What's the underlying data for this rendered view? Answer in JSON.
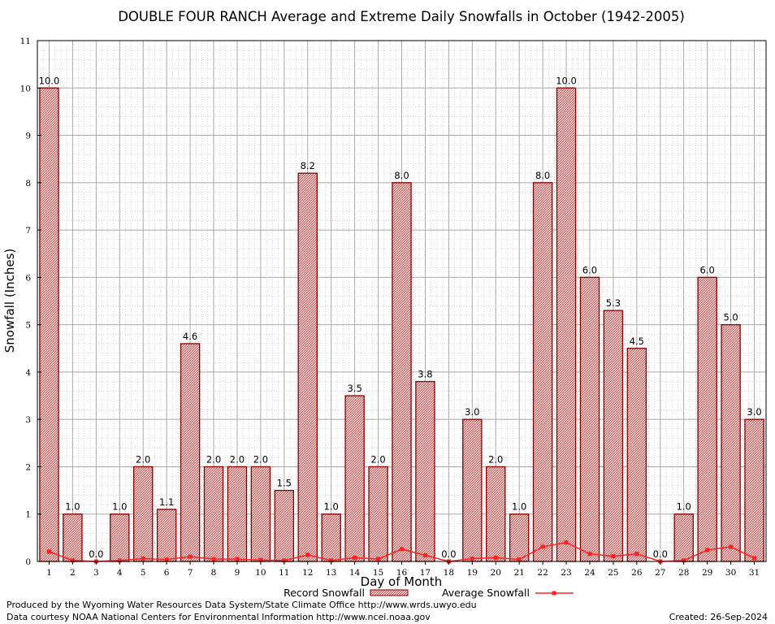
{
  "chart_data": {
    "type": "bar",
    "title": "DOUBLE FOUR RANCH Average and Extreme Daily Snowfalls in October (1942-2005)",
    "xlabel": "Day of Month",
    "ylabel": "Snowfall (Inches)",
    "ylim": [
      0,
      11
    ],
    "yticks": [
      "0",
      "1",
      "2",
      "3",
      "4",
      "5",
      "6",
      "7",
      "8",
      "9",
      "10",
      "11"
    ],
    "categories": [
      "1",
      "2",
      "3",
      "4",
      "5",
      "6",
      "7",
      "8",
      "9",
      "10",
      "11",
      "12",
      "13",
      "14",
      "15",
      "16",
      "17",
      "18",
      "19",
      "20",
      "21",
      "22",
      "23",
      "24",
      "25",
      "26",
      "27",
      "28",
      "29",
      "30",
      "31"
    ],
    "series": [
      {
        "name": "Record Snowfall",
        "kind": "bar",
        "color": "#b22222",
        "values": [
          10.0,
          1.0,
          0.0,
          1.0,
          2.0,
          1.1,
          4.6,
          2.0,
          2.0,
          2.0,
          1.5,
          8.2,
          1.0,
          3.5,
          2.0,
          8.0,
          3.8,
          0.0,
          3.0,
          2.0,
          1.0,
          8.0,
          10.0,
          6.0,
          5.3,
          4.5,
          0.0,
          1.0,
          6.0,
          5.0,
          3.0
        ],
        "labels": [
          "10.0",
          "1.0",
          "0.0",
          "1.0",
          "2.0",
          "1.1",
          "4.6",
          "2.0",
          "2.0",
          "2.0",
          "1.5",
          "8.2",
          "1.0",
          "3.5",
          "2.0",
          "8.0",
          "3.8",
          "0.0",
          "3.0",
          "2.0",
          "1.0",
          "8.0",
          "10.0",
          "6.0",
          "5.3",
          "4.5",
          "0.0",
          "1.0",
          "6.0",
          "5.0",
          "3.0"
        ]
      },
      {
        "name": "Average Snowfall",
        "kind": "line",
        "color": "#ff2020",
        "values": [
          0.21,
          0.02,
          0.0,
          0.02,
          0.06,
          0.04,
          0.1,
          0.05,
          0.05,
          0.03,
          0.02,
          0.14,
          0.02,
          0.08,
          0.05,
          0.26,
          0.13,
          0.0,
          0.06,
          0.08,
          0.04,
          0.31,
          0.4,
          0.16,
          0.11,
          0.16,
          0.0,
          0.02,
          0.24,
          0.31,
          0.07
        ]
      }
    ],
    "grid": true,
    "legend_position": "bottom-center"
  },
  "footer": {
    "produced_by": "Produced by the Wyoming Water Resources Data System/State Climate Office http://www.wrds.uwyo.edu",
    "data_courtesy": "Data courtesy NOAA National Centers for Environmental Information http://www.ncei.noaa.gov",
    "created": "Created:  26-Sep-2024"
  }
}
